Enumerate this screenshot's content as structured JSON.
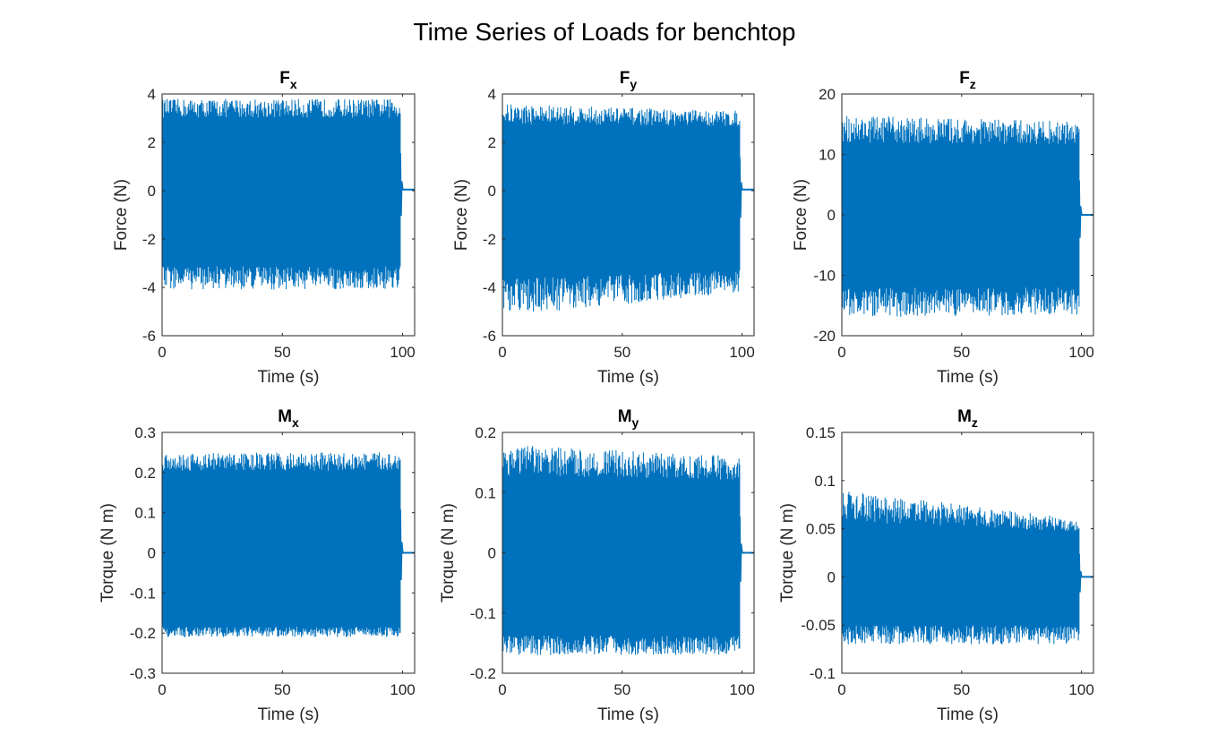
{
  "figure": {
    "title": "Time Series of Loads for benchtop",
    "line_color": "#0072BD",
    "axis_color": "#262626"
  },
  "chart_data": [
    {
      "type": "line",
      "title": "F",
      "title_sub": "x",
      "xlabel": "Time (s)",
      "ylabel": "Force (N)",
      "xlim": [
        0,
        105
      ],
      "ylim": [
        -6,
        4
      ],
      "xticks": [
        0,
        50,
        100
      ],
      "xtick_labels": [
        "0",
        "50",
        "100"
      ],
      "yticks": [
        -6,
        -4,
        -2,
        0,
        2,
        4
      ],
      "ytick_labels": [
        "-6",
        "-4",
        "-2",
        "0",
        "2",
        "4"
      ],
      "series": [
        {
          "x": [
            0,
            99,
            100,
            105
          ],
          "envelope_upper": [
            3.8,
            3.8,
            0.1,
            0.1
          ],
          "envelope_lower": [
            -4.1,
            -4.1,
            0.0,
            0.0
          ],
          "band_upper": 2.6,
          "band_lower": -2.6,
          "settled_value": 0.05
        }
      ]
    },
    {
      "type": "line",
      "title": "F",
      "title_sub": "y",
      "xlabel": "Time (s)",
      "ylabel": "Force (N)",
      "xlim": [
        0,
        105
      ],
      "ylim": [
        -6,
        4
      ],
      "xticks": [
        0,
        50,
        100
      ],
      "xtick_labels": [
        "0",
        "50",
        "100"
      ],
      "yticks": [
        -6,
        -4,
        -2,
        0,
        2,
        4
      ],
      "ytick_labels": [
        "-6",
        "-4",
        "-2",
        "0",
        "2",
        "4"
      ],
      "series": [
        {
          "x": [
            0,
            99,
            100,
            105
          ],
          "envelope_upper": [
            3.6,
            3.3,
            0.1,
            0.1
          ],
          "envelope_lower": [
            -5.2,
            -4.2,
            0.0,
            0.0
          ],
          "band_upper": 2.3,
          "band_lower": -2.8,
          "settled_value": 0.05
        }
      ]
    },
    {
      "type": "line",
      "title": "F",
      "title_sub": "z",
      "xlabel": "Time (s)",
      "ylabel": "Force (N)",
      "xlim": [
        0,
        105
      ],
      "ylim": [
        -20,
        20
      ],
      "xticks": [
        0,
        50,
        100
      ],
      "xtick_labels": [
        "0",
        "50",
        "100"
      ],
      "yticks": [
        -20,
        -10,
        0,
        10,
        20
      ],
      "ytick_labels": [
        "-20",
        "-10",
        "0",
        "10",
        "20"
      ],
      "series": [
        {
          "x": [
            0,
            99,
            100,
            105
          ],
          "envelope_upper": [
            16.5,
            15.5,
            0.2,
            0.2
          ],
          "envelope_lower": [
            -17,
            -16.5,
            -0.2,
            -0.2
          ],
          "band_upper": 9.5,
          "band_lower": -9.5,
          "settled_value": 0.0
        }
      ]
    },
    {
      "type": "line",
      "title": "M",
      "title_sub": "x",
      "xlabel": "Time (s)",
      "ylabel": "Torque (N m)",
      "xlim": [
        0,
        105
      ],
      "ylim": [
        -0.3,
        0.3
      ],
      "xticks": [
        0,
        50,
        100
      ],
      "xtick_labels": [
        "0",
        "50",
        "100"
      ],
      "yticks": [
        -0.3,
        -0.2,
        -0.1,
        0,
        0.1,
        0.2,
        0.3
      ],
      "ytick_labels": [
        "-0.3",
        "-0.2",
        "-0.1",
        "0",
        "0.1",
        "0.2",
        "0.3"
      ],
      "series": [
        {
          "x": [
            0,
            99,
            100,
            105
          ],
          "envelope_upper": [
            0.25,
            0.25,
            0.02,
            0.02
          ],
          "envelope_lower": [
            -0.21,
            -0.21,
            -0.02,
            -0.02
          ],
          "band_upper": 0.18,
          "band_lower": -0.17,
          "settled_value": 0.0
        }
      ]
    },
    {
      "type": "line",
      "title": "M",
      "title_sub": "y",
      "xlabel": "Time (s)",
      "ylabel": "Torque (N m)",
      "xlim": [
        0,
        105
      ],
      "ylim": [
        -0.2,
        0.2
      ],
      "xticks": [
        0,
        50,
        100
      ],
      "xtick_labels": [
        "0",
        "50",
        "100"
      ],
      "yticks": [
        -0.2,
        -0.1,
        0,
        0.1,
        0.2
      ],
      "ytick_labels": [
        "-0.2",
        "-0.1",
        "0",
        "0.1",
        "0.2"
      ],
      "series": [
        {
          "x": [
            0,
            99,
            100,
            105
          ],
          "envelope_upper": [
            0.18,
            0.16,
            0.005,
            0.005
          ],
          "envelope_lower": [
            -0.17,
            -0.17,
            -0.005,
            -0.005
          ],
          "band_upper": 0.1,
          "band_lower": -0.12,
          "settled_value": 0.0
        }
      ]
    },
    {
      "type": "line",
      "title": "M",
      "title_sub": "z",
      "xlabel": "Time (s)",
      "ylabel": "Torque (N m)",
      "xlim": [
        0,
        105
      ],
      "ylim": [
        -0.1,
        0.15
      ],
      "xticks": [
        0,
        50,
        100
      ],
      "xtick_labels": [
        "0",
        "50",
        "100"
      ],
      "yticks": [
        -0.1,
        -0.05,
        0,
        0.05,
        0.1,
        0.15
      ],
      "ytick_labels": [
        "-0.1",
        "-0.05",
        "0",
        "0.05",
        "0.1",
        "0.15"
      ],
      "series": [
        {
          "x": [
            0,
            99,
            100,
            105
          ],
          "envelope_upper": [
            0.09,
            0.06,
            0.003,
            0.003
          ],
          "envelope_lower": [
            -0.07,
            -0.07,
            -0.003,
            -0.003
          ],
          "band_upper": 0.04,
          "band_lower": -0.04,
          "settled_value": 0.0
        }
      ]
    }
  ]
}
